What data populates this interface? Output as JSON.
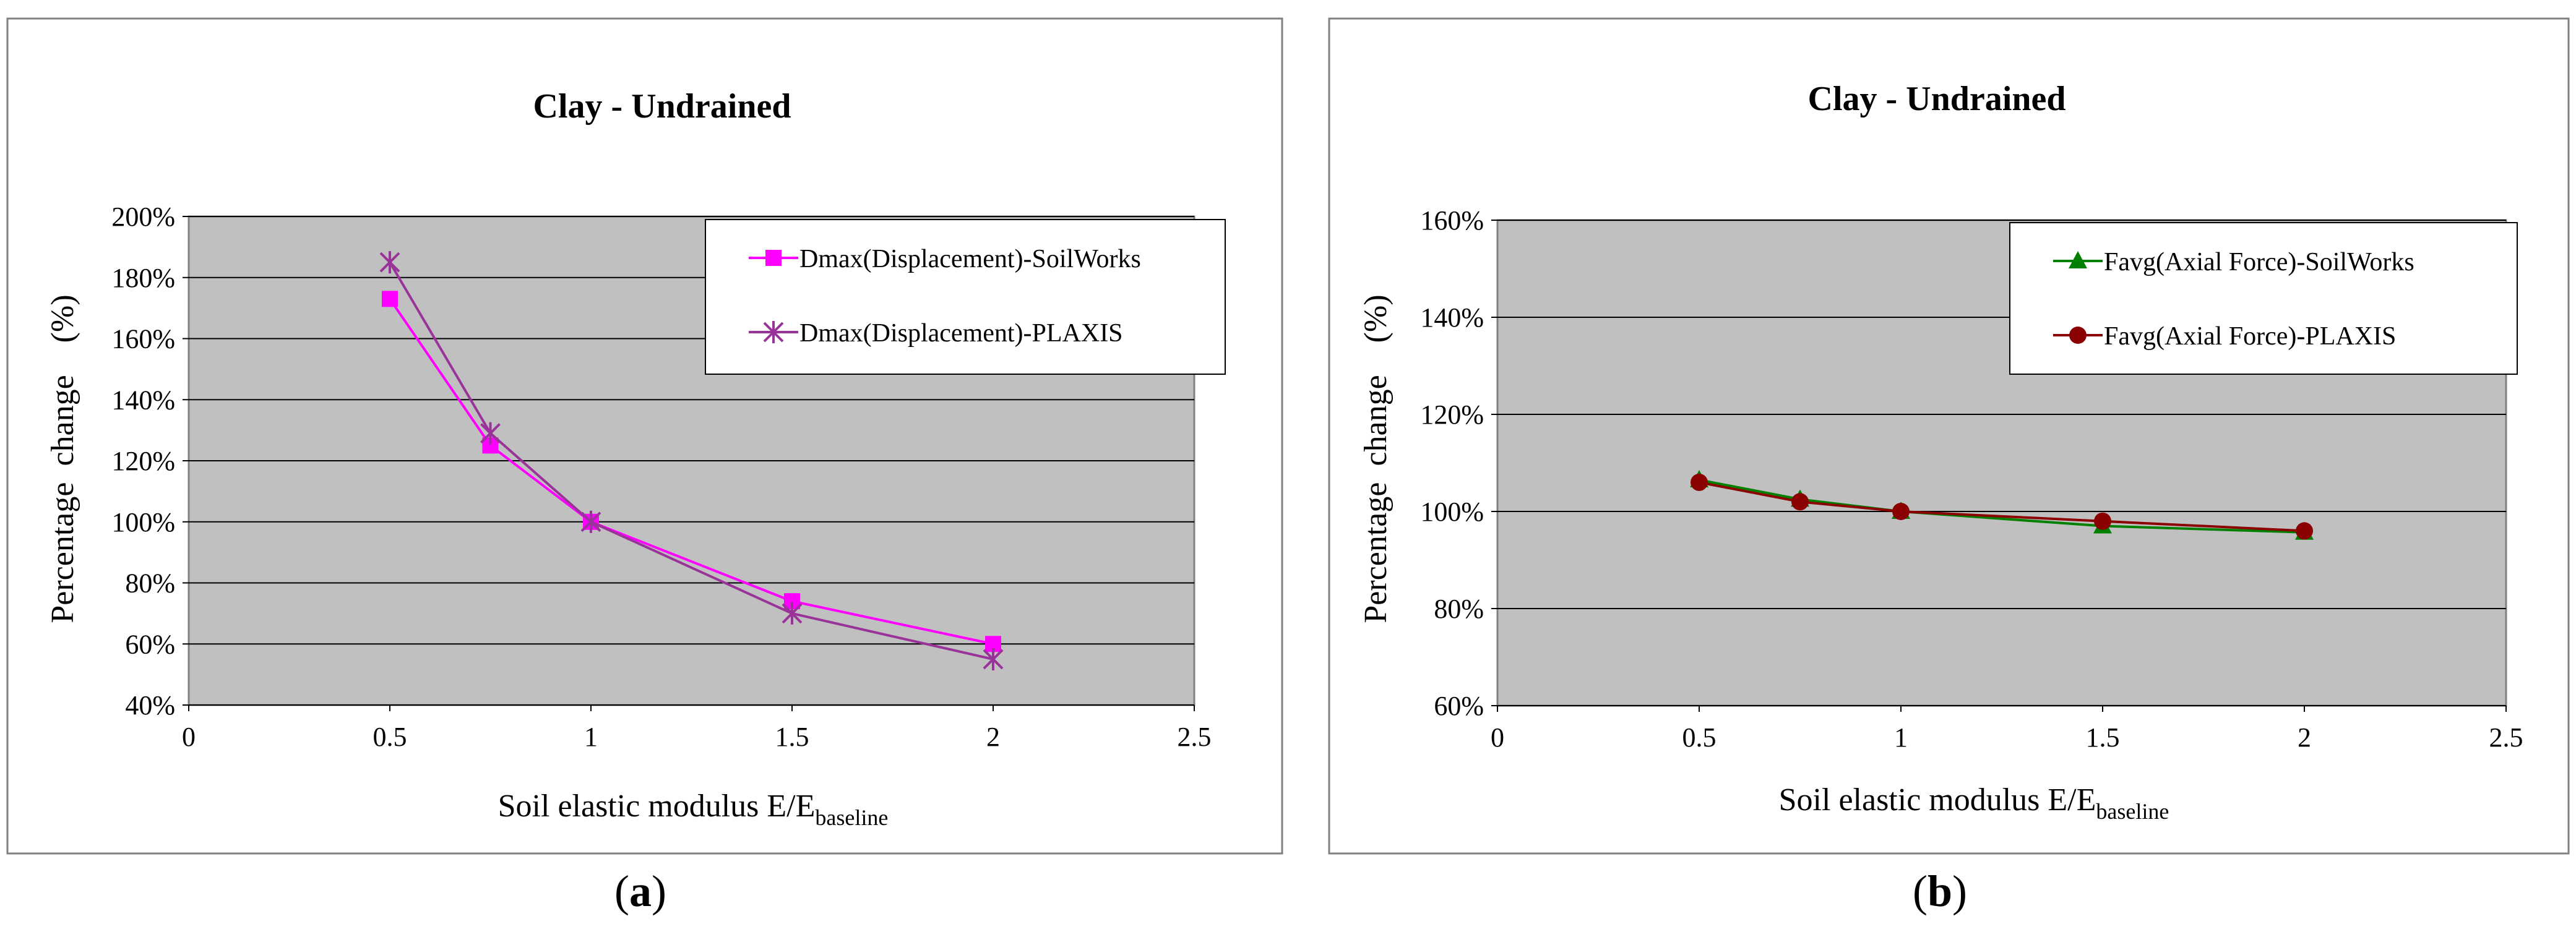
{
  "captions": [
    {
      "open": "(",
      "letter": "a",
      "close": ")"
    },
    {
      "open": "(",
      "letter": "b",
      "close": ")"
    }
  ],
  "colors": {
    "plot_bg": "#c0c0c0",
    "frame": "#808080",
    "grid": "#000000",
    "magenta": "#ff00ff",
    "purple": "#993399",
    "green": "#008000",
    "darkred": "#8b0000"
  },
  "chart_data": [
    {
      "type": "line",
      "title": "Clay - Undrained",
      "ylabel": "Percentage  change    (%)",
      "xlabel_main": "Soil elastic modulus E/E",
      "xlabel_sub": "baseline",
      "xlim": [
        0,
        2.5
      ],
      "ylim": [
        40,
        200
      ],
      "xticks": [
        0,
        0.5,
        1,
        1.5,
        2,
        2.5
      ],
      "xtick_labels": [
        "0",
        "0.5",
        "1",
        "1.5",
        "2",
        "2.5"
      ],
      "yticks": [
        40,
        60,
        80,
        100,
        120,
        140,
        160,
        180,
        200
      ],
      "ytick_labels": [
        "40%",
        "60%",
        "80%",
        "100%",
        "120%",
        "140%",
        "160%",
        "180%",
        "200%"
      ],
      "legend_position": "top-right",
      "series": [
        {
          "name": "Dmax(Displacement)-SoilWorks",
          "marker": "square",
          "color": "#ff00ff",
          "x": [
            0.5,
            0.75,
            1,
            1.5,
            2
          ],
          "y": [
            173,
            125,
            100,
            74,
            60
          ]
        },
        {
          "name": "Dmax(Displacement)-PLAXIS",
          "marker": "asterisk",
          "color": "#993399",
          "x": [
            0.5,
            0.75,
            1,
            1.5,
            2
          ],
          "y": [
            185,
            129,
            100,
            70,
            55
          ]
        }
      ]
    },
    {
      "type": "line",
      "title": "Clay - Undrained",
      "ylabel": "Percentage  change    (%)",
      "xlabel_main": "Soil elastic modulus E/E",
      "xlabel_sub": "baseline",
      "xlim": [
        0,
        2.5
      ],
      "ylim": [
        60,
        160
      ],
      "xticks": [
        0,
        0.5,
        1,
        1.5,
        2,
        2.5
      ],
      "xtick_labels": [
        "0",
        "0.5",
        "1",
        "1.5",
        "2",
        "2.5"
      ],
      "yticks": [
        60,
        80,
        100,
        120,
        140,
        160
      ],
      "ytick_labels": [
        "60%",
        "80%",
        "100%",
        "120%",
        "140%",
        "160%"
      ],
      "legend_position": "top-right",
      "series": [
        {
          "name": "Favg(Axial Force)-SoilWorks",
          "marker": "triangle",
          "color": "#008000",
          "x": [
            0.5,
            0.75,
            1,
            1.5,
            2
          ],
          "y": [
            106.5,
            102.5,
            100,
            97,
            95.7
          ]
        },
        {
          "name": "Favg(Axial Force)-PLAXIS",
          "marker": "circle",
          "color": "#8b0000",
          "x": [
            0.5,
            0.75,
            1,
            1.5,
            2
          ],
          "y": [
            106,
            102,
            100,
            98,
            96
          ]
        }
      ]
    }
  ]
}
